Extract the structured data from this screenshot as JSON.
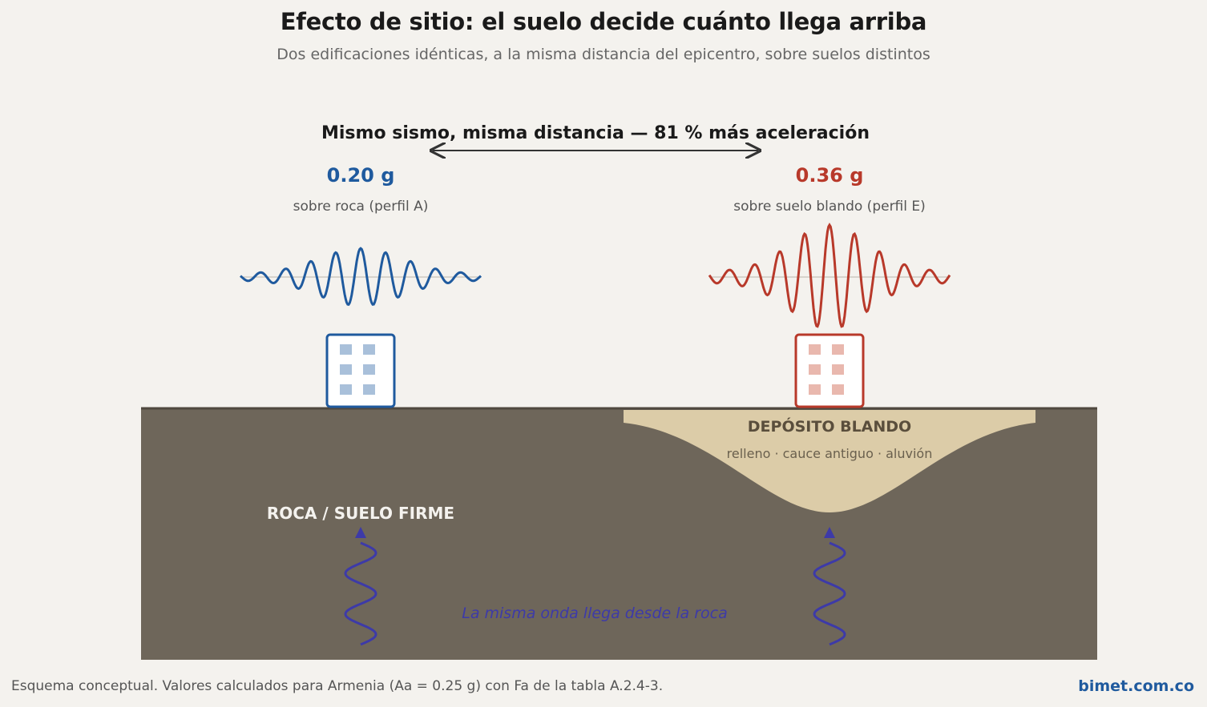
{
  "header": {
    "title": "Efecto de sitio: el suelo decide cuánto llega arriba",
    "subtitle": "Dos edificaciones idénticas, a la misma distancia del epicentro, sobre suelos distintos"
  },
  "comparison": {
    "label": "Mismo sismo, misma distancia — 81 % más aceleración"
  },
  "sites": {
    "rock": {
      "value": "0.20 g",
      "caption": "sobre roca  (perfil A)",
      "color": "#1f5a9e",
      "ground_label": "ROCA / SUELO FIRME"
    },
    "soft": {
      "value": "0.36 g",
      "caption": "sobre suelo blando  (perfil E)",
      "color": "#b8392a",
      "deposit_title": "DEPÓSITO BLANDO",
      "deposit_subtitle": "relleno · cauce antiguo · aluvión"
    }
  },
  "incoming_wave": {
    "label": "La misma onda llega desde la roca",
    "color": "#3d3aa8"
  },
  "footer": {
    "note": "Esquema conceptual. Valores calculados para Armenia (Aa = 0.25 g) con Fa de la tabla A.2.4-3.",
    "brand": "bimet.com.co"
  },
  "colors": {
    "background": "#f4f2ee",
    "rock_ground": "#6e665a",
    "soft_deposit": "#dccca8"
  }
}
